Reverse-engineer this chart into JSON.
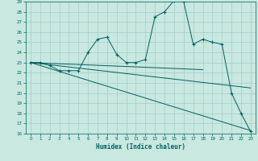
{
  "xlabel": "Humidex (Indice chaleur)",
  "xlim": [
    -0.5,
    23.5
  ],
  "ylim": [
    16,
    29
  ],
  "yticks": [
    16,
    17,
    18,
    19,
    20,
    21,
    22,
    23,
    24,
    25,
    26,
    27,
    28,
    29
  ],
  "xticks": [
    0,
    1,
    2,
    3,
    4,
    5,
    6,
    7,
    8,
    9,
    10,
    11,
    12,
    13,
    14,
    15,
    16,
    17,
    18,
    19,
    20,
    21,
    22,
    23
  ],
  "bg_color": "#c8e8e0",
  "line_color": "#006060",
  "grid_color": "#a8ccc8",
  "main_curve_x": [
    0,
    1,
    2,
    3,
    4,
    5,
    6,
    7,
    8,
    9,
    10,
    11,
    12,
    13,
    14,
    15,
    16,
    17,
    18,
    19,
    20,
    21,
    22,
    23
  ],
  "main_curve_y": [
    23.0,
    23.0,
    22.7,
    22.2,
    22.2,
    22.2,
    24.0,
    25.3,
    25.5,
    23.8,
    23.0,
    23.0,
    23.3,
    27.5,
    28.0,
    29.1,
    29.0,
    24.8,
    25.3,
    25.0,
    24.8,
    20.0,
    18.0,
    16.2
  ],
  "line1_x": [
    0,
    18
  ],
  "line1_y": [
    23.0,
    22.3
  ],
  "line2_x": [
    0,
    23
  ],
  "line2_y": [
    23.0,
    20.5
  ],
  "line3_x": [
    0,
    23
  ],
  "line3_y": [
    23.0,
    16.3
  ]
}
